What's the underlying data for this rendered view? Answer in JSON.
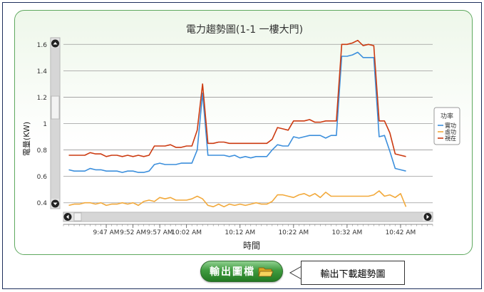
{
  "chart": {
    "title": "電力趨勢圖(1-1 一樓大門)",
    "ylabel": "電量(KW)",
    "xlabel": "時間",
    "legend_title": "功率"
  },
  "export_button": {
    "label": "輸出圖檔",
    "icon": "folder-open-icon"
  },
  "callout": {
    "text": "輸出下載趨勢圖"
  },
  "chart_data": {
    "type": "line",
    "title": "電力趨勢圖(1-1 一樓大門)",
    "xlabel": "時間",
    "ylabel": "電量(KW)",
    "ylim": [
      0.35,
      1.65
    ],
    "yticks": [
      0.4,
      0.6,
      0.8,
      1,
      1.2,
      1.4,
      1.6
    ],
    "x_tick_labels": [
      "9:47 AM",
      "9:52 AM",
      "9:57 AM",
      "10:02 AM",
      "10:12 AM",
      "10:22 AM",
      "10:32 AM",
      "10:42 AM"
    ],
    "x_tick_minutes": [
      8,
      13,
      18,
      23,
      33,
      43,
      53,
      63
    ],
    "x_range_minutes": [
      0,
      69
    ],
    "x_step_minutes": 1,
    "legend": {
      "title": "功率",
      "position": "right"
    },
    "grid": true,
    "series": [
      {
        "name": "實功",
        "color": "#3c8fdc",
        "values": [
          0.65,
          0.64,
          0.64,
          0.64,
          0.66,
          0.65,
          0.65,
          0.64,
          0.64,
          0.64,
          0.63,
          0.64,
          0.64,
          0.63,
          0.63,
          0.64,
          0.69,
          0.7,
          0.69,
          0.69,
          0.69,
          0.7,
          0.7,
          0.7,
          0.8,
          1.23,
          0.76,
          0.76,
          0.76,
          0.76,
          0.75,
          0.76,
          0.74,
          0.75,
          0.74,
          0.75,
          0.75,
          0.75,
          0.8,
          0.84,
          0.83,
          0.83,
          0.9,
          0.89,
          0.9,
          0.91,
          0.91,
          0.91,
          0.89,
          0.91,
          0.91,
          1.51,
          1.51,
          1.52,
          1.54,
          1.5,
          1.5,
          1.5,
          0.9,
          0.91,
          0.79,
          0.66,
          0.65,
          0.64
        ]
      },
      {
        "name": "虛功",
        "color": "#f2a93b",
        "values": [
          0.38,
          0.39,
          0.39,
          0.4,
          0.4,
          0.39,
          0.4,
          0.38,
          0.39,
          0.39,
          0.4,
          0.39,
          0.4,
          0.38,
          0.41,
          0.42,
          0.41,
          0.44,
          0.43,
          0.44,
          0.42,
          0.42,
          0.42,
          0.43,
          0.45,
          0.43,
          0.38,
          0.37,
          0.39,
          0.37,
          0.39,
          0.38,
          0.39,
          0.38,
          0.39,
          0.4,
          0.39,
          0.39,
          0.41,
          0.46,
          0.46,
          0.45,
          0.44,
          0.46,
          0.47,
          0.45,
          0.47,
          0.44,
          0.48,
          0.45,
          0.45,
          0.45,
          0.45,
          0.45,
          0.45,
          0.45,
          0.45,
          0.46,
          0.49,
          0.45,
          0.46,
          0.44,
          0.47,
          0.37
        ]
      },
      {
        "name": "視在",
        "color": "#cc3a10",
        "values": [
          0.76,
          0.76,
          0.76,
          0.76,
          0.78,
          0.77,
          0.77,
          0.75,
          0.76,
          0.76,
          0.75,
          0.76,
          0.75,
          0.76,
          0.75,
          0.76,
          0.83,
          0.83,
          0.83,
          0.84,
          0.82,
          0.82,
          0.83,
          0.83,
          0.95,
          1.3,
          0.85,
          0.85,
          0.86,
          0.86,
          0.85,
          0.85,
          0.85,
          0.85,
          0.85,
          0.85,
          0.85,
          0.85,
          0.88,
          0.97,
          0.96,
          0.95,
          1.02,
          1.02,
          1.02,
          1.03,
          1.01,
          1.01,
          1.02,
          1.02,
          1.02,
          1.6,
          1.6,
          1.61,
          1.63,
          1.59,
          1.6,
          1.59,
          1.02,
          1.02,
          0.93,
          0.77,
          0.76,
          0.75
        ]
      }
    ]
  }
}
